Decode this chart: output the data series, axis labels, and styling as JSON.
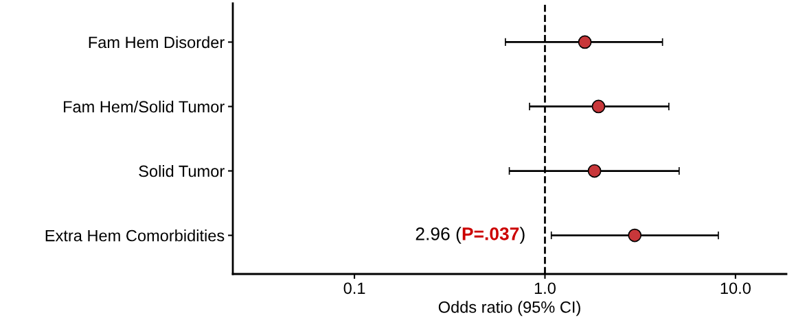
{
  "chart_data": {
    "type": "scatter",
    "orientation": "horizontal",
    "categories": [
      "Fam Hem Disorder",
      "Fam Hem/Solid Tumor",
      "Solid Tumor",
      "Extra Hem Comorbidities"
    ],
    "values": [
      1.62,
      1.91,
      1.82,
      2.96
    ],
    "errors": [
      [
        0.62,
        4.14
      ],
      [
        0.83,
        4.47
      ],
      [
        0.65,
        5.06
      ],
      [
        1.08,
        8.13
      ]
    ],
    "color": "#c8373a",
    "marker": "circle",
    "log": "x",
    "xlim": [
      0.023,
      18.5
    ],
    "xticks": [
      {
        "value": 0.1,
        "label": "0.1"
      },
      {
        "value": 1,
        "label": "1.0"
      },
      {
        "value": 10,
        "label": "10.0"
      }
    ],
    "xlabel": "Odds ratio (95% CI)",
    "ref_lines": [
      {
        "axis": "x",
        "value": 1,
        "color": "#000000",
        "line_style": "dashed"
      }
    ],
    "annotations": [
      "2.96 (P=.037)"
    ],
    "grid": false,
    "legend": false
  }
}
